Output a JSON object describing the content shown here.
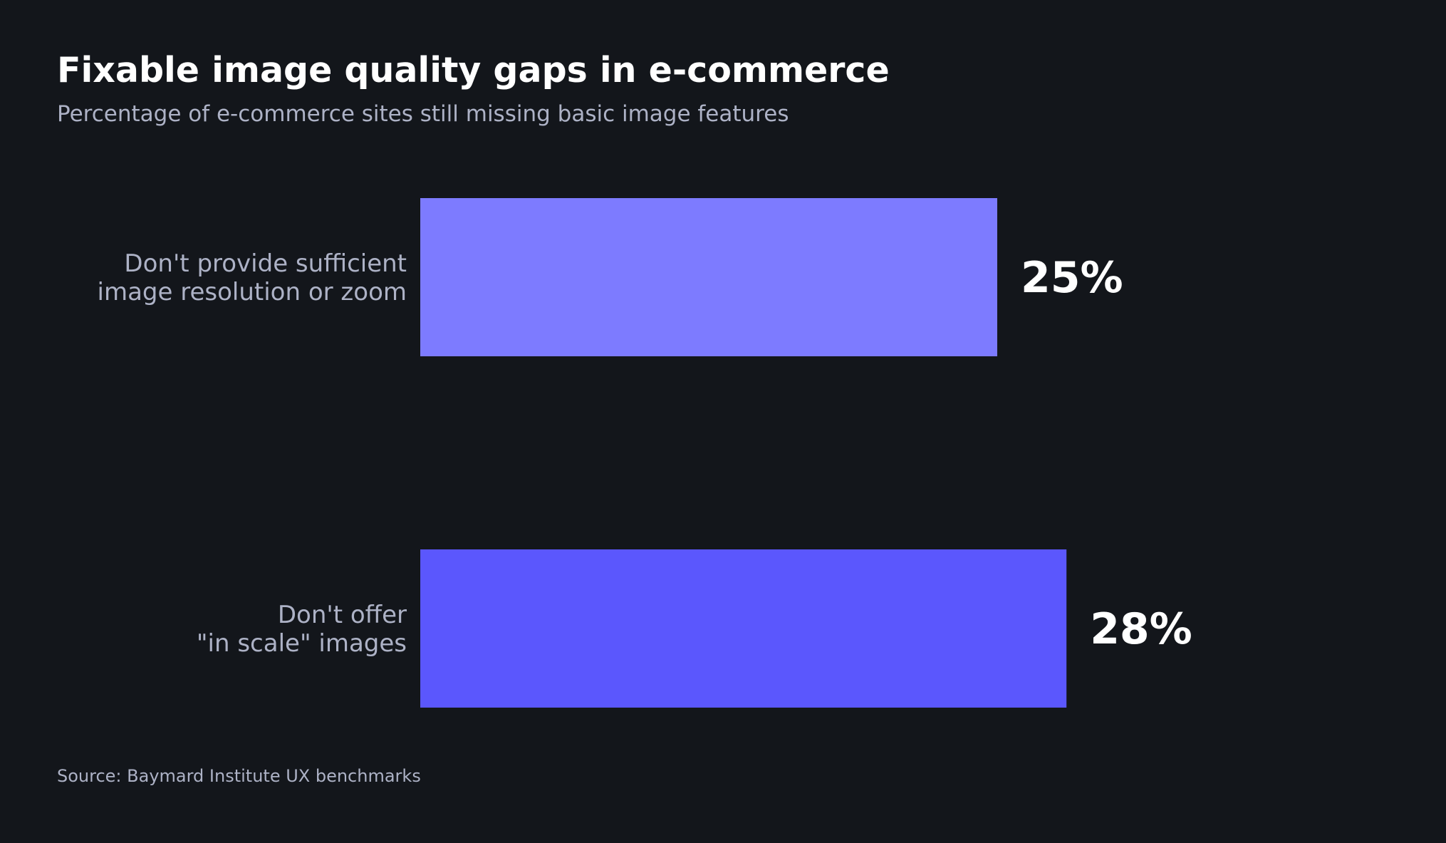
{
  "chart_data": {
    "type": "bar",
    "orientation": "horizontal",
    "title": "Fixable image quality gaps in e-commerce",
    "subtitle": "Percentage of e-commerce sites still missing basic image features",
    "source": "Source: Baymard Institute UX benchmarks",
    "categories": [
      [
        "Don't provide sufficient",
        "image resolution or zoom"
      ],
      [
        "Don't offer",
        "\"in scale\" images"
      ]
    ],
    "values": [
      25,
      28
    ],
    "value_labels": [
      "25%",
      "28%"
    ],
    "bar_colors": [
      "#7d7bff",
      "#5b57fd"
    ],
    "xlim": [
      0,
      50
    ],
    "grid": false,
    "legend": "none"
  }
}
